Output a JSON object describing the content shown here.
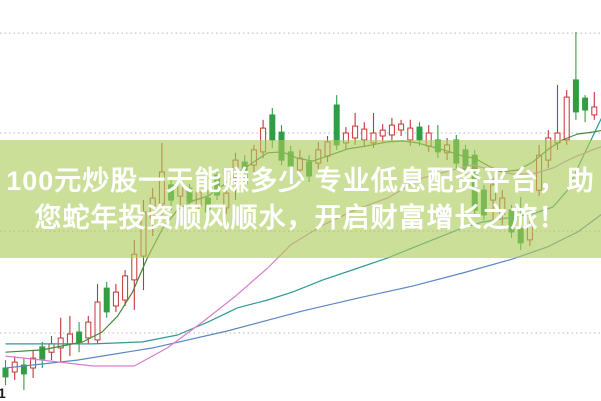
{
  "overlay": {
    "line1": "100元炒股一天能赚多少 专业低息配资平台，助",
    "line2": "您蛇年投资顺风顺水，开启财富增长之旅！",
    "text_color": "#ffffff",
    "band_color": "rgba(171,203,91,0.62)"
  },
  "corner_mark": "1",
  "chart_data": {
    "type": "candlestick",
    "title": "",
    "xlabel": "",
    "ylabel": "",
    "x_axis": {
      "visible": false,
      "bars": 65
    },
    "y_axis": {
      "visible": false,
      "range": [
        0,
        121.5
      ],
      "unit": "unlabeled"
    },
    "grid": "dotted-horizontal",
    "grid_color": "#b9b9b9",
    "gridlines_price": [
      111.5,
      81.2,
      51.5,
      20.6
    ],
    "up_color": "#c43434",
    "down_color": "#2f9e44",
    "up_fill": "#ffffff",
    "candles": [
      [
        10.0,
        12.4,
        4.8,
        7.3
      ],
      [
        8.8,
        13.6,
        6.4,
        11.8
      ],
      [
        10.9,
        13.0,
        3.3,
        8.2
      ],
      [
        10.0,
        15.5,
        7.0,
        13.0
      ],
      [
        16.4,
        17.9,
        10.0,
        12.7
      ],
      [
        14.8,
        19.7,
        12.4,
        17.3
      ],
      [
        16.1,
        25.2,
        11.8,
        19.1
      ],
      [
        17.3,
        25.8,
        13.6,
        20.3
      ],
      [
        20.9,
        23.9,
        14.8,
        17.9
      ],
      [
        19.1,
        25.8,
        17.3,
        23.9
      ],
      [
        18.5,
        35.5,
        17.3,
        30.0
      ],
      [
        34.2,
        36.1,
        25.2,
        27.0
      ],
      [
        28.8,
        35.5,
        27.0,
        33.0
      ],
      [
        30.6,
        39.7,
        28.8,
        37.9
      ],
      [
        36.7,
        48.8,
        27.6,
        44.5
      ],
      [
        43.9,
        60.9,
        33.6,
        57.3
      ],
      [
        55.5,
        64.5,
        50.0,
        61.5
      ],
      [
        59.7,
        78.2,
        56.4,
        69.4
      ],
      [
        65.5,
        67.0,
        57.9,
        60.9
      ],
      [
        62.1,
        68.2,
        59.4,
        66.4
      ],
      [
        64.5,
        65.8,
        58.5,
        60.3
      ],
      [
        59.1,
        65.2,
        56.7,
        63.3
      ],
      [
        61.5,
        63.9,
        55.5,
        57.3
      ],
      [
        68.5,
        70.0,
        60.9,
        62.4
      ],
      [
        58.5,
        64.5,
        56.7,
        63.0
      ],
      [
        67.6,
        75.2,
        60.9,
        73.0
      ],
      [
        72.4,
        74.5,
        63.9,
        65.8
      ],
      [
        71.5,
        77.6,
        69.4,
        76.1
      ],
      [
        75.5,
        85.2,
        73.6,
        82.7
      ],
      [
        86.7,
        88.8,
        76.7,
        79.1
      ],
      [
        81.5,
        83.6,
        71.5,
        73.0
      ],
      [
        75.5,
        77.3,
        69.4,
        71.2
      ],
      [
        70.0,
        76.1,
        67.6,
        73.6
      ],
      [
        72.4,
        74.5,
        66.4,
        68.2
      ],
      [
        72.1,
        78.5,
        70.0,
        76.1
      ],
      [
        74.2,
        80.3,
        72.4,
        78.5
      ],
      [
        89.7,
        92.7,
        76.1,
        77.6
      ],
      [
        78.2,
        83.0,
        76.1,
        81.2
      ],
      [
        79.7,
        87.3,
        77.6,
        83.3
      ],
      [
        79.1,
        84.5,
        77.0,
        82.4
      ],
      [
        78.2,
        87.3,
        76.7,
        81.2
      ],
      [
        80.3,
        83.9,
        78.5,
        82.1
      ],
      [
        80.6,
        85.8,
        78.8,
        83.6
      ],
      [
        82.1,
        85.2,
        80.3,
        83.9
      ],
      [
        79.1,
        85.2,
        77.3,
        82.7
      ],
      [
        83.0,
        84.5,
        77.3,
        79.1
      ],
      [
        77.3,
        83.6,
        75.5,
        81.2
      ],
      [
        79.1,
        83.6,
        73.6,
        75.5
      ],
      [
        75.2,
        79.7,
        73.0,
        77.6
      ],
      [
        79.1,
        80.6,
        70.6,
        72.1
      ],
      [
        76.1,
        77.6,
        68.5,
        70.0
      ],
      [
        74.5,
        76.1,
        56.4,
        57.9
      ],
      [
        63.9,
        65.5,
        54.8,
        56.4
      ],
      [
        60.9,
        67.6,
        54.2,
        65.5
      ],
      [
        56.7,
        63.9,
        53.3,
        61.5
      ],
      [
        57.9,
        59.4,
        49.4,
        51.2
      ],
      [
        52.4,
        61.8,
        45.8,
        47.9
      ],
      [
        48.8,
        56.4,
        47.0,
        53.3
      ],
      [
        63.9,
        77.6,
        62.1,
        74.5
      ],
      [
        73.0,
        82.1,
        70.6,
        79.7
      ],
      [
        78.2,
        95.8,
        76.1,
        81.2
      ],
      [
        79.1,
        94.2,
        77.6,
        92.1
      ],
      [
        97.3,
        111.8,
        85.2,
        87.6
      ],
      [
        91.8,
        92.7,
        84.5,
        88.2
      ],
      [
        86.7,
        93.6,
        85.2,
        89.1
      ]
    ],
    "ma_lines": [
      {
        "name": "ma-slow-blue",
        "color": "#5b87c5",
        "points": [
          [
            0,
            10.0
          ],
          [
            7.8,
            12.4
          ],
          [
            16,
            16.1
          ],
          [
            24.1,
            21.2
          ],
          [
            32.3,
            27.3
          ],
          [
            38.8,
            31.5
          ],
          [
            44.2,
            34.8
          ],
          [
            49.7,
            38.8
          ],
          [
            55.1,
            43.0
          ],
          [
            58.9,
            46.7
          ],
          [
            62.2,
            51.2
          ],
          [
            65,
            57.0
          ]
        ]
      },
      {
        "name": "ma-medium-teal",
        "color": "#2e9a96",
        "points": [
          [
            0,
            17.3
          ],
          [
            9.5,
            17.3
          ],
          [
            14.9,
            17.9
          ],
          [
            18.7,
            20.0
          ],
          [
            22,
            23.9
          ],
          [
            25.2,
            28.2
          ],
          [
            28.5,
            30.6
          ],
          [
            31.2,
            33.0
          ],
          [
            34.5,
            36.7
          ],
          [
            37.7,
            39.7
          ],
          [
            41.5,
            43.3
          ],
          [
            45.3,
            47.6
          ],
          [
            49.1,
            51.8
          ],
          [
            51.8,
            54.2
          ],
          [
            54.6,
            55.5
          ],
          [
            57.3,
            56.7
          ],
          [
            59.5,
            58.8
          ],
          [
            61.1,
            63.9
          ],
          [
            62.7,
            73.6
          ],
          [
            65,
            87.0
          ]
        ]
      },
      {
        "name": "ma-mid-magenta",
        "color": "#d87ecf",
        "points": [
          [
            0,
            13.6
          ],
          [
            4,
            12.4
          ],
          [
            9.5,
            10.6
          ],
          [
            14,
            10.6
          ],
          [
            17.6,
            16.1
          ],
          [
            21.4,
            23.9
          ],
          [
            25,
            31.8
          ],
          [
            28.5,
            40.3
          ],
          [
            31,
            47.3
          ],
          [
            34.5,
            53.3
          ],
          [
            38,
            57.9
          ],
          [
            41.5,
            61.5
          ],
          [
            45.3,
            67.6
          ],
          [
            48.6,
            70.0
          ],
          [
            50.8,
            71.5
          ],
          [
            52.9,
            70.0
          ],
          [
            55.1,
            68.8
          ],
          [
            57.3,
            68.8
          ],
          [
            59.5,
            70.6
          ],
          [
            61.6,
            73.6
          ],
          [
            63.8,
            76.1
          ],
          [
            65,
            77.3
          ]
        ]
      },
      {
        "name": "ma-fast-green",
        "color": "#44883a",
        "points": [
          [
            0,
            14.8
          ],
          [
            4,
            15.5
          ],
          [
            8.4,
            17.9
          ],
          [
            10.5,
            20.9
          ],
          [
            12.2,
            25.8
          ],
          [
            13.8,
            33.0
          ],
          [
            15.4,
            43.3
          ],
          [
            17.1,
            52.4
          ],
          [
            18.7,
            57.9
          ],
          [
            20.3,
            60.6
          ],
          [
            22,
            62.1
          ],
          [
            23.6,
            65.2
          ],
          [
            25.2,
            69.1
          ],
          [
            26.8,
            72.1
          ],
          [
            28.5,
            75.2
          ],
          [
            30.1,
            75.5
          ],
          [
            31.7,
            73.6
          ],
          [
            33.4,
            72.7
          ],
          [
            35,
            74.2
          ],
          [
            37.2,
            76.4
          ],
          [
            39.3,
            77.3
          ],
          [
            41.5,
            78.5
          ],
          [
            43.2,
            78.8
          ],
          [
            44.8,
            78.2
          ],
          [
            46.4,
            77.0
          ],
          [
            48,
            75.8
          ],
          [
            49.7,
            74.2
          ],
          [
            51,
            73.6
          ],
          [
            52.5,
            71.2
          ],
          [
            54,
            69.4
          ],
          [
            55.7,
            70.0
          ],
          [
            57.3,
            72.4
          ],
          [
            58.9,
            76.1
          ],
          [
            60.5,
            79.1
          ],
          [
            62.2,
            80.9
          ],
          [
            63.8,
            81.5
          ],
          [
            65,
            82.1
          ]
        ]
      }
    ]
  }
}
